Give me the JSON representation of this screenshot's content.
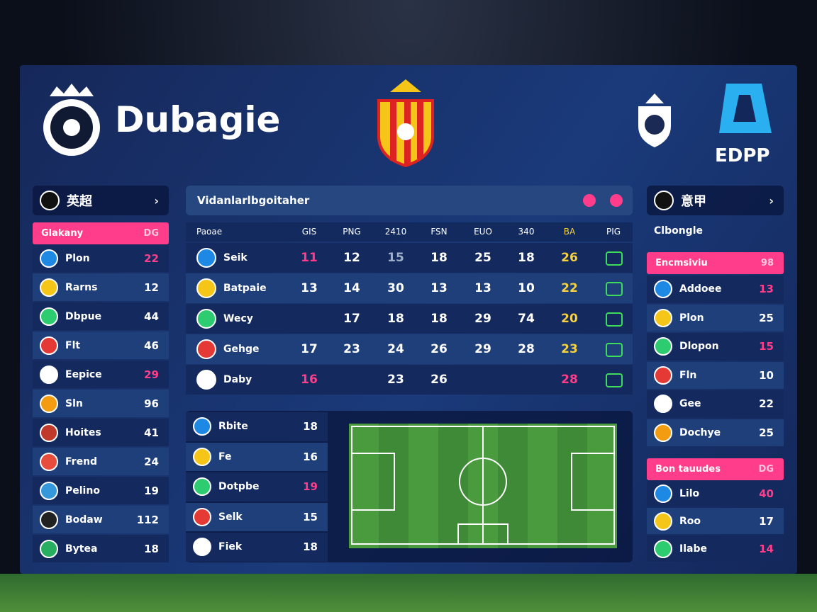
{
  "header": {
    "brand": "Dubagie",
    "logo": "EDPP"
  },
  "left_panel": {
    "title": "英超",
    "columns": [
      "Glakany",
      "DG"
    ],
    "rows": [
      {
        "name": "Plon",
        "value": 22,
        "color": "#ff3d8a"
      },
      {
        "name": "Rarns",
        "value": 12
      },
      {
        "name": "Dbpue",
        "value": 44
      },
      {
        "name": "Flt",
        "value": 46
      },
      {
        "name": "Eepice",
        "value": 29,
        "color": "#ff3d8a"
      },
      {
        "name": "Sln",
        "value": 96
      },
      {
        "name": "Hoites",
        "value": 41
      },
      {
        "name": "Frend",
        "value": 24
      },
      {
        "name": "Pelino",
        "value": 19
      },
      {
        "name": "Bodaw",
        "value": 112
      },
      {
        "name": "Bytea",
        "value": 18
      }
    ]
  },
  "center_table": {
    "title": "Vidanlarlbgoitaher",
    "columns": [
      "Paoae",
      "GIS",
      "PNG",
      "2410",
      "FSN",
      "EUO",
      "340",
      "BA",
      "PIG"
    ],
    "rows": [
      {
        "name": "Seik",
        "values": [
          11,
          12,
          15,
          18,
          25,
          18,
          26
        ],
        "colors": [
          "#ff3d8a",
          null,
          "#9fb0c8",
          null,
          null,
          null,
          "#f5d142"
        ]
      },
      {
        "name": "Batpaie",
        "values": [
          13,
          14,
          30,
          13,
          13,
          10,
          22
        ],
        "colors": [
          null,
          null,
          null,
          null,
          null,
          null,
          "#f5d142"
        ]
      },
      {
        "name": "Wecy",
        "values": [
          null,
          17,
          18,
          18,
          29,
          74,
          20
        ],
        "colors": [
          null,
          null,
          null,
          null,
          null,
          null,
          "#f5d142"
        ]
      },
      {
        "name": "Gehge",
        "values": [
          17,
          23,
          24,
          26,
          29,
          28,
          23
        ],
        "colors": [
          null,
          null,
          null,
          null,
          null,
          null,
          "#f5d142"
        ]
      },
      {
        "name": "Daby",
        "values": [
          16,
          null,
          23,
          26,
          null,
          null,
          28
        ],
        "colors": [
          "#ff3d8a",
          null,
          null,
          null,
          null,
          null,
          "#ff3d8a"
        ]
      }
    ]
  },
  "center_list": {
    "rows": [
      {
        "name": "Rbite",
        "value": 18
      },
      {
        "name": "Fe",
        "value": 16
      },
      {
        "name": "Dotpbe",
        "value": 19,
        "color": "#ff3d8a"
      },
      {
        "name": "Selk",
        "value": 15
      },
      {
        "name": "Fiek",
        "value": 18
      }
    ]
  },
  "right_panel": {
    "title": "意甲",
    "subtitle": "Clbongle",
    "section_1": {
      "columns": [
        "Encmsiviu",
        "98"
      ],
      "rows": [
        {
          "name": "Addoee",
          "value": 13,
          "color": "#ff3d8a"
        },
        {
          "name": "Plon",
          "value": 25
        },
        {
          "name": "Dlopon",
          "value": 15,
          "color": "#ff3d8a"
        },
        {
          "name": "Fln",
          "value": 10
        },
        {
          "name": "Gee",
          "value": 22
        },
        {
          "name": "Dochye",
          "value": 25
        }
      ]
    },
    "section_2": {
      "columns": [
        "Bon tauudes",
        "DG"
      ],
      "rows": [
        {
          "name": "Lilo",
          "value": 40,
          "color": "#ff3d8a"
        },
        {
          "name": "Roo",
          "value": 17
        },
        {
          "name": "Ilabe",
          "value": 14,
          "color": "#ff3d8a"
        }
      ]
    }
  }
}
